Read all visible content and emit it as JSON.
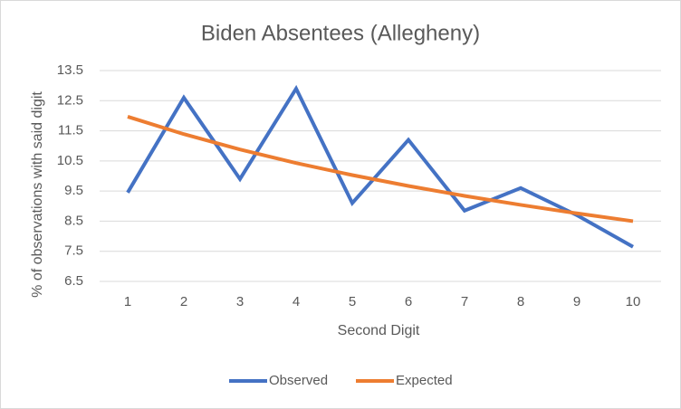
{
  "chart_data": {
    "type": "line",
    "title": "Biden Absentees (Allegheny)",
    "x_label": "Second Digit",
    "y_label": "% of observations with said digit",
    "categories": [
      "1",
      "2",
      "3",
      "4",
      "5",
      "6",
      "7",
      "8",
      "9",
      "10"
    ],
    "series": [
      {
        "name": "Observed",
        "color": "#4472c4",
        "values": [
          9.45,
          12.6,
          9.9,
          12.9,
          9.1,
          11.2,
          8.85,
          9.6,
          8.7,
          7.65
        ]
      },
      {
        "name": "Expected",
        "color": "#ed7d31",
        "values": [
          11.97,
          11.39,
          10.88,
          10.43,
          10.03,
          9.67,
          9.34,
          9.04,
          8.76,
          8.5
        ]
      }
    ],
    "ylim": [
      6.5,
      13.5
    ],
    "yticks": [
      6.5,
      7.5,
      8.5,
      9.5,
      10.5,
      11.5,
      12.5,
      13.5
    ],
    "grid": true,
    "legend": "bottom"
  }
}
